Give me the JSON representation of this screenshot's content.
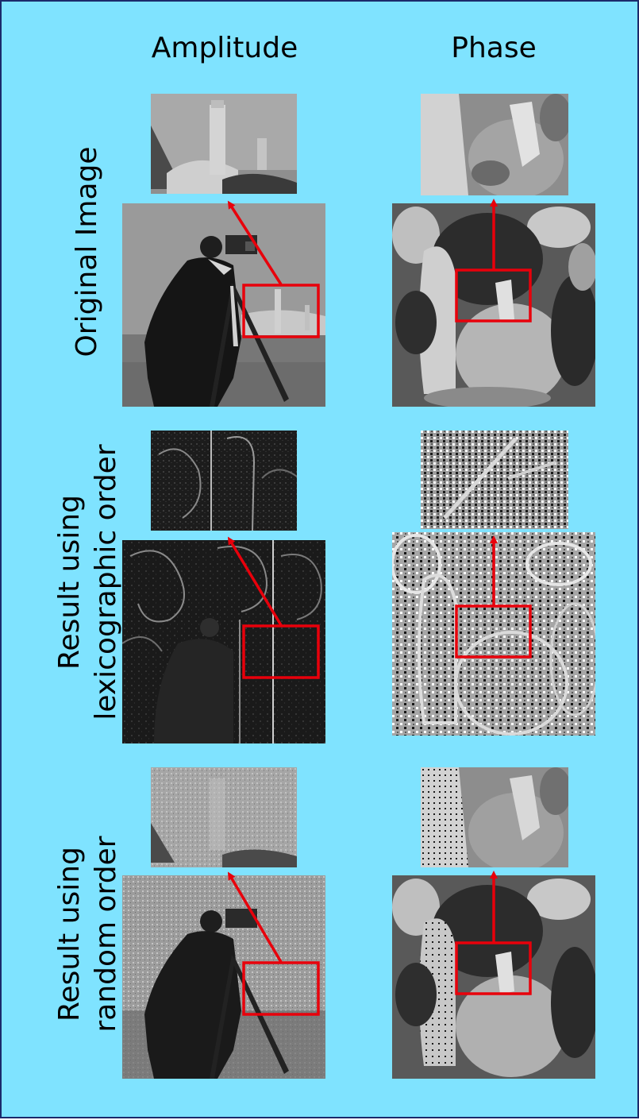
{
  "columns": {
    "amplitude": "Amplitude",
    "phase": "Phase"
  },
  "rows": [
    {
      "label_line1": "Original Image",
      "label_line2": ""
    },
    {
      "label_line1": "Result using",
      "label_line2": "lexicographic order"
    },
    {
      "label_line1": "Result using",
      "label_line2": "random order"
    }
  ],
  "colors": {
    "background": "#7fe3ff",
    "border": "#1b2a6b",
    "annotation": "#e8000b"
  }
}
